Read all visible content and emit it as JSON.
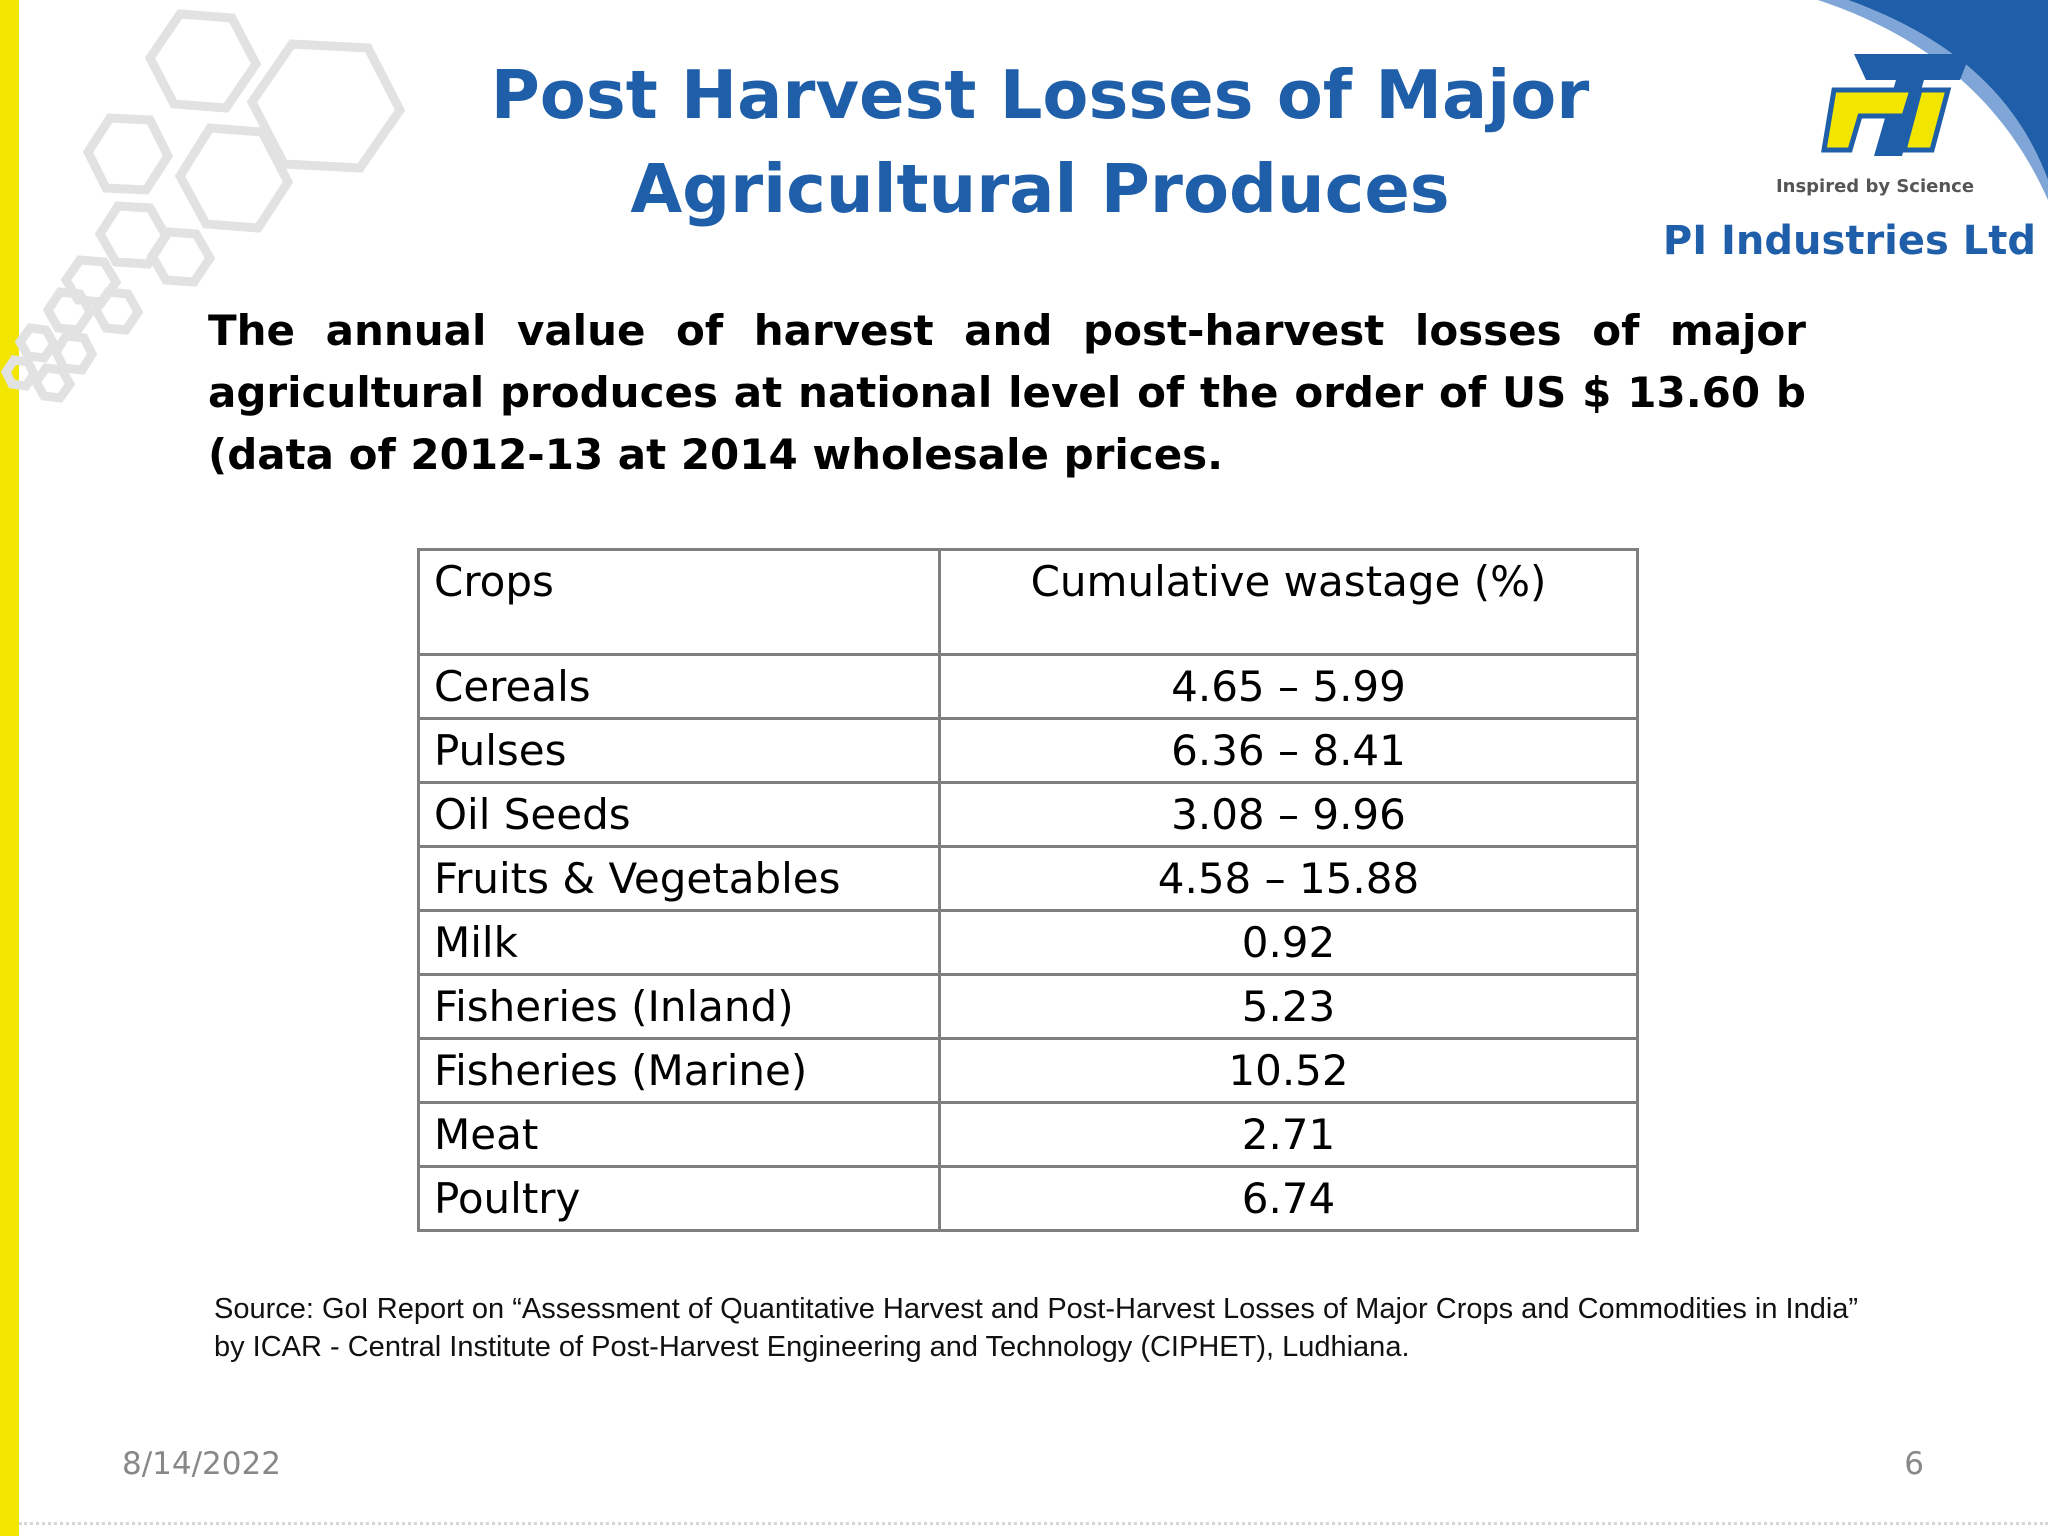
{
  "slide": {
    "title_line1": "Post Harvest Losses of Major",
    "title_line2": "Agricultural Produces",
    "lead_text": "The  annual value of harvest and post-harvest losses of major agricultural produces at national level of the order of US $ 13.60 b (data of 2012-13 at 2014 wholesale prices.",
    "source": "Source: GoI Report on “Assessment of Quantitative Harvest and Post-Harvest Losses of Major Crops and Commodities in India” by ICAR - Central Institute of Post-Harvest Engineering and Technology (CIPHET), Ludhiana.",
    "date": "8/14/2022",
    "page_number": "6"
  },
  "branding": {
    "tagline": "Inspired by Science",
    "company": "PI Industries Ltd",
    "accent_yellow": "#f2e600",
    "brand_blue": "#1f5ea8"
  },
  "table": {
    "headers": [
      "Crops",
      "Cumulative wastage (%)"
    ],
    "rows": [
      {
        "crop": "Cereals",
        "wastage": "4.65 – 5.99"
      },
      {
        "crop": "Pulses",
        "wastage": "6.36 – 8.41"
      },
      {
        "crop": "Oil Seeds",
        "wastage": "3.08 – 9.96"
      },
      {
        "crop": "Fruits & Vegetables",
        "wastage": "4.58 – 15.88"
      },
      {
        "crop": "Milk",
        "wastage": "0.92"
      },
      {
        "crop": "Fisheries (Inland)",
        "wastage": "5.23"
      },
      {
        "crop": "Fisheries (Marine)",
        "wastage": "10.52"
      },
      {
        "crop": "Meat",
        "wastage": "2.71"
      },
      {
        "crop": "Poultry",
        "wastage": "6.74"
      }
    ]
  }
}
